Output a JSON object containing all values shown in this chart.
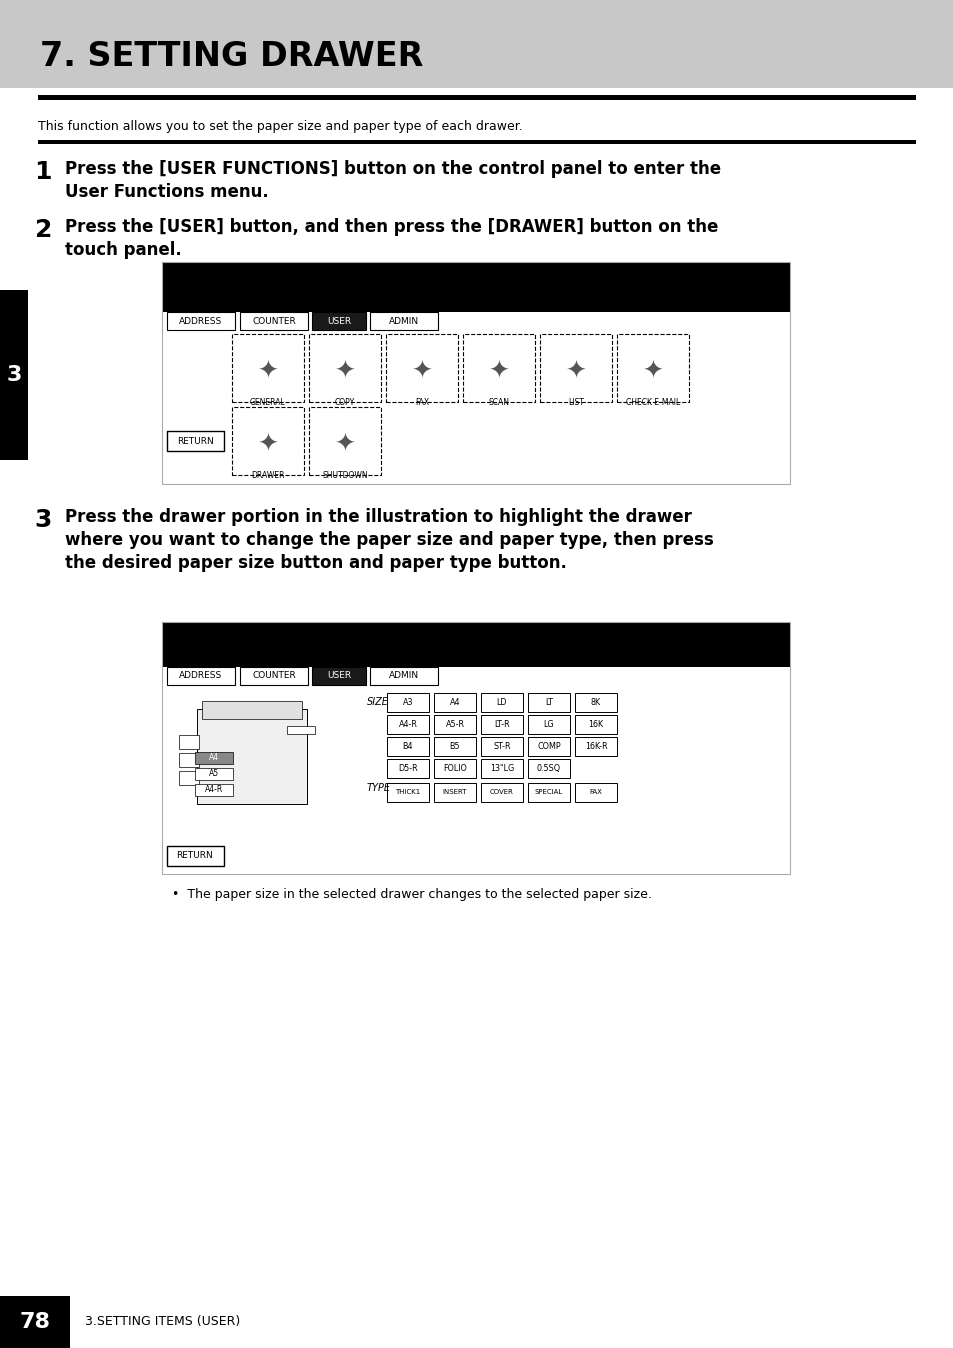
{
  "title": "7. SETTING DRAWER",
  "title_bg_color": "#c8c8c8",
  "title_fontsize": 22,
  "page_bg_color": "#ffffff",
  "intro_text": "This function allows you to set the paper size and paper type of each drawer.",
  "step1_num": "1",
  "step1_line1": "Press the [USER FUNCTIONS] button on the control panel to enter the",
  "step1_line2": "User Functions menu.",
  "step2_num": "2",
  "step2_line1": "Press the [USER] button, and then press the [DRAWER] button on the",
  "step2_line2": "touch panel.",
  "step3_num": "3",
  "step3_line1": "Press the drawer portion in the illustration to highlight the drawer",
  "step3_line2": "where you want to change the paper size and paper type, then press",
  "step3_line3": "the desired paper size button and paper type button.",
  "bullet_note": "The paper size in the selected drawer changes to the selected paper size.",
  "tab_number": "3",
  "page_number": "78",
  "footer_text": "3.SETTING ITEMS (USER)",
  "size_buttons_row1": [
    "A3",
    "A4",
    "LD",
    "LT",
    "8K"
  ],
  "size_buttons_row2": [
    "A4-R",
    "A5-R",
    "LT-R",
    "LG",
    "16K"
  ],
  "size_buttons_row3": [
    "B4",
    "B5",
    "ST-R",
    "COMP",
    "16K-R"
  ],
  "size_buttons_row4": [
    "D5-R",
    "FOLIO",
    "13\"LG",
    "0.5SQ"
  ],
  "type_buttons": [
    "THICK1",
    "INSERT",
    "COVER",
    "SPECIAL",
    "FAX"
  ],
  "tab_buttons": [
    "ADDRESS",
    "COUNTER",
    "USER",
    "ADMIN"
  ]
}
